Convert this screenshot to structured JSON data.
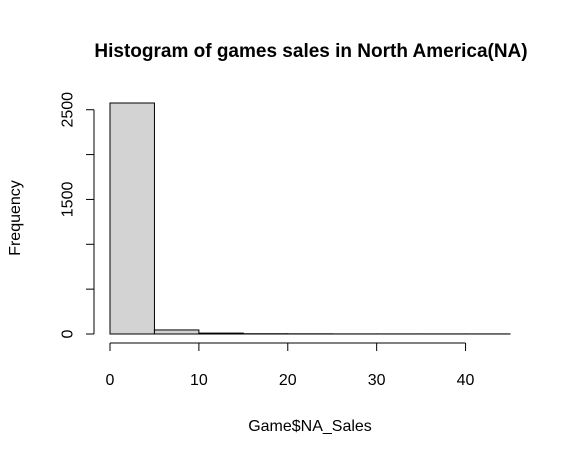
{
  "chart_data": {
    "type": "bar",
    "title": "Histogram of games sales in North America(NA)",
    "xlabel": "Game$NA_Sales",
    "ylabel": "Frequency",
    "bin_width": 5,
    "bins": [
      {
        "start": 0,
        "end": 5,
        "count": 2575
      },
      {
        "start": 5,
        "end": 10,
        "count": 45
      },
      {
        "start": 10,
        "end": 15,
        "count": 10
      },
      {
        "start": 15,
        "end": 20,
        "count": 3
      },
      {
        "start": 20,
        "end": 25,
        "count": 2
      },
      {
        "start": 25,
        "end": 30,
        "count": 1
      },
      {
        "start": 30,
        "end": 35,
        "count": 1
      },
      {
        "start": 35,
        "end": 40,
        "count": 1
      },
      {
        "start": 40,
        "end": 45,
        "count": 1
      }
    ],
    "xlim": [
      0,
      45
    ],
    "ylim": [
      0,
      2575
    ],
    "x_ticks": [
      0,
      10,
      20,
      30,
      40
    ],
    "y_ticks": [
      0,
      500,
      1000,
      1500,
      2000,
      2500
    ],
    "y_tick_labels": [
      "0",
      "",
      "",
      "1500",
      "",
      "2500"
    ],
    "bar_color": "#d3d3d3",
    "grid": false
  }
}
